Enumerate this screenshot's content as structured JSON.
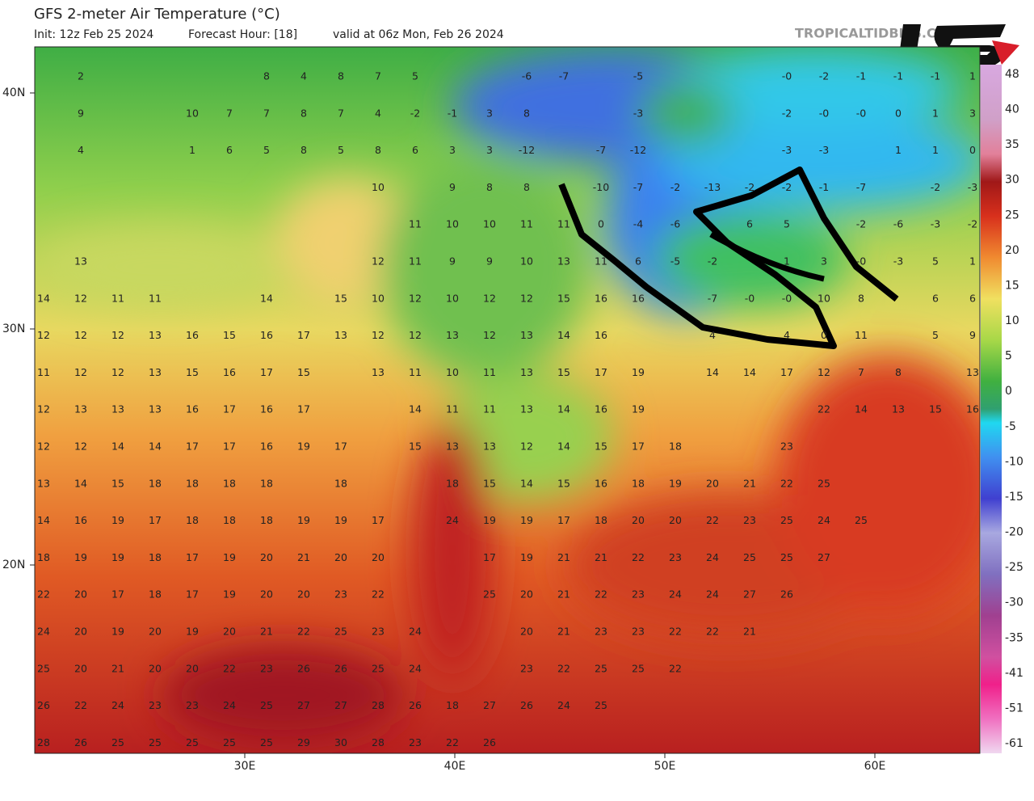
{
  "header": {
    "title": "GFS 2-meter Air Temperature (°C)",
    "init": "Init: 12z Feb 25 2024",
    "forecast_hour": "Forecast Hour: [18]",
    "valid": "valid at 06z Mon, Feb 26 2024",
    "watermark": "TROPICALTIDBITS.COM"
  },
  "axes": {
    "latitude_labels": [
      "40N",
      "30N",
      "20N"
    ],
    "longitude_labels": [
      "30E",
      "40E",
      "50E",
      "60E"
    ]
  },
  "colorbar": {
    "labels": [
      "48",
      "40",
      "35",
      "30",
      "25",
      "20",
      "15",
      "10",
      "5",
      "0",
      "-5",
      "-10",
      "-15",
      "-20",
      "-25",
      "-30",
      "-35",
      "-41",
      "-51",
      "-61"
    ]
  },
  "map": {
    "temperature_labels": [
      [
        null,
        "2",
        null,
        null,
        null,
        null,
        "8",
        "4",
        "8",
        "7",
        "5",
        null,
        null,
        "-6",
        "-7",
        null,
        "-5",
        null,
        null,
        null,
        "-0",
        "-2",
        "-1",
        "-1",
        "-1",
        "1"
      ],
      [
        null,
        "9",
        null,
        null,
        "10",
        "7",
        "7",
        "8",
        "7",
        "4",
        "-2",
        "-1",
        "3",
        "8",
        null,
        null,
        "-3",
        null,
        null,
        null,
        "-2",
        "-0",
        "-0",
        "0",
        "1",
        "3"
      ],
      [
        null,
        "4",
        null,
        null,
        "1",
        "6",
        "5",
        "8",
        "5",
        "8",
        "6",
        "3",
        "3",
        "-12",
        null,
        "-7",
        "-12",
        null,
        null,
        null,
        "-3",
        "-3",
        null,
        "1",
        "1",
        "0"
      ],
      [
        null,
        null,
        null,
        null,
        null,
        null,
        null,
        null,
        null,
        "10",
        null,
        "9",
        "8",
        "8",
        null,
        "-10",
        "-7",
        "-2",
        "-13",
        "-2",
        "-2",
        "-1",
        "-7",
        null,
        "-2",
        "-3"
      ],
      [
        null,
        null,
        null,
        null,
        null,
        null,
        null,
        null,
        null,
        null,
        "11",
        "10",
        "10",
        "11",
        "11",
        "0",
        "-4",
        "-6",
        null,
        "6",
        "5",
        null,
        "-2",
        "-6",
        "-3",
        "-2"
      ],
      [
        null,
        "13",
        null,
        null,
        null,
        null,
        null,
        null,
        null,
        "12",
        "11",
        "9",
        "9",
        "10",
        "13",
        "11",
        "6",
        "-5",
        "-2",
        null,
        "1",
        "3",
        "-0",
        "-3",
        "5",
        "1"
      ],
      [
        "14",
        "12",
        "11",
        "11",
        null,
        null,
        "14",
        null,
        "15",
        "10",
        "12",
        "10",
        "12",
        "12",
        "15",
        "16",
        "16",
        null,
        "-7",
        "-0",
        "-0",
        "10",
        "8",
        null,
        "6",
        "6"
      ],
      [
        "12",
        "12",
        "12",
        "13",
        "16",
        "15",
        "16",
        "17",
        "13",
        "12",
        "12",
        "13",
        "12",
        "13",
        "14",
        "16",
        null,
        null,
        "4",
        null,
        "4",
        "0",
        "11",
        null,
        "5",
        "9"
      ],
      [
        "11",
        "12",
        "12",
        "13",
        "15",
        "16",
        "17",
        "15",
        null,
        "13",
        "11",
        "10",
        "11",
        "13",
        "15",
        "17",
        "19",
        null,
        "14",
        "14",
        "17",
        "12",
        "7",
        "8",
        null,
        "13"
      ],
      [
        "12",
        "13",
        "13",
        "13",
        "16",
        "17",
        "16",
        "17",
        null,
        null,
        "14",
        "11",
        "11",
        "13",
        "14",
        "16",
        "19",
        null,
        null,
        null,
        null,
        "22",
        "14",
        "13",
        "15",
        "16"
      ],
      [
        "12",
        "12",
        "14",
        "14",
        "17",
        "17",
        "16",
        "19",
        "17",
        null,
        "15",
        "13",
        "13",
        "12",
        "14",
        "15",
        "17",
        "18",
        null,
        null,
        "23",
        null,
        null,
        null,
        null,
        null
      ],
      [
        "13",
        "14",
        "15",
        "18",
        "18",
        "18",
        "18",
        null,
        "18",
        null,
        null,
        "18",
        "15",
        "14",
        "15",
        "16",
        "18",
        "19",
        "20",
        "21",
        "22",
        "25",
        null,
        null,
        null,
        null
      ],
      [
        "14",
        "16",
        "19",
        "17",
        "18",
        "18",
        "18",
        "19",
        "19",
        "17",
        null,
        "24",
        "19",
        "19",
        "17",
        "18",
        "20",
        "20",
        "22",
        "23",
        "25",
        "24",
        "25",
        null,
        null,
        null
      ],
      [
        "18",
        "19",
        "19",
        "18",
        "17",
        "19",
        "20",
        "21",
        "20",
        "20",
        null,
        null,
        "17",
        "19",
        "21",
        "21",
        "22",
        "23",
        "24",
        "25",
        "25",
        "27",
        null,
        null,
        null,
        null
      ],
      [
        "22",
        "20",
        "17",
        "18",
        "17",
        "19",
        "20",
        "20",
        "23",
        "22",
        null,
        null,
        "25",
        "20",
        "21",
        "22",
        "23",
        "24",
        "24",
        "27",
        "26",
        null,
        null,
        null,
        null,
        null
      ],
      [
        "24",
        "20",
        "19",
        "20",
        "19",
        "20",
        "21",
        "22",
        "25",
        "23",
        "24",
        null,
        null,
        "20",
        "21",
        "23",
        "23",
        "22",
        "22",
        "21",
        null,
        null,
        null,
        null,
        null,
        null
      ],
      [
        "25",
        "20",
        "21",
        "20",
        "20",
        "22",
        "23",
        "26",
        "26",
        "25",
        "24",
        null,
        null,
        "23",
        "22",
        "25",
        "25",
        "22",
        null,
        null,
        null,
        null,
        null,
        null,
        null,
        null
      ],
      [
        "26",
        "22",
        "24",
        "23",
        "23",
        "24",
        "25",
        "27",
        "27",
        "28",
        "26",
        "18",
        "27",
        "26",
        "24",
        "25",
        null,
        null,
        null,
        null,
        null,
        null,
        null,
        null,
        null,
        null
      ],
      [
        "28",
        "26",
        "25",
        "25",
        "25",
        "25",
        "25",
        "29",
        "30",
        "28",
        "23",
        "22",
        "26",
        null,
        null,
        null,
        null,
        null,
        null,
        null,
        null,
        null,
        null,
        null,
        null,
        null
      ]
    ]
  }
}
